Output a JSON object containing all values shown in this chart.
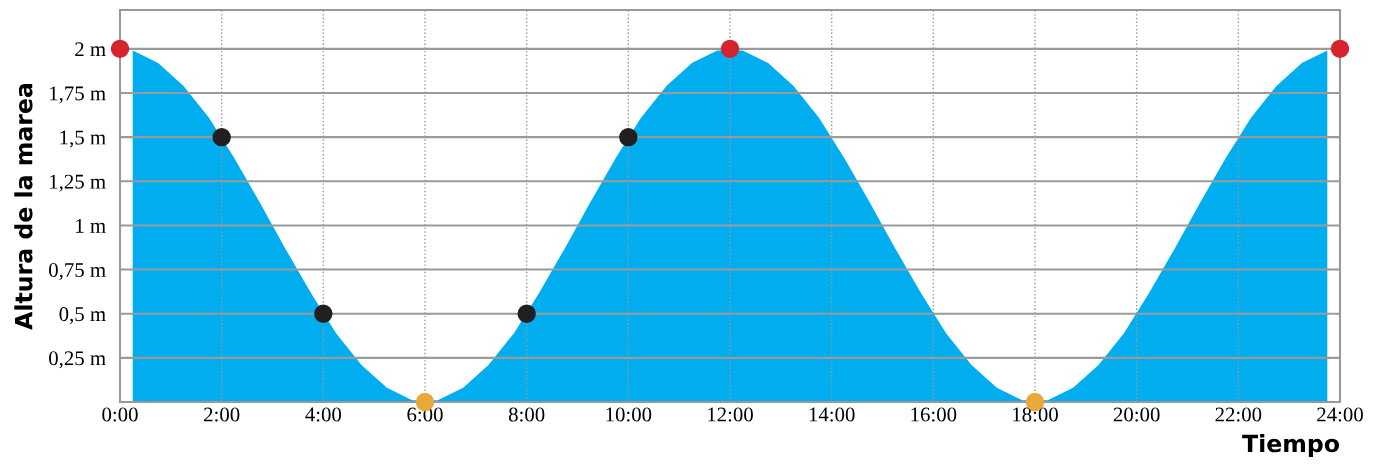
{
  "chart_data": {
    "type": "area",
    "xlabel": "Tiempo",
    "ylabel": "Altura de la marea",
    "grid": true,
    "legend": false,
    "xlim": [
      0,
      24
    ],
    "ylim": [
      0,
      2.22
    ],
    "xticks": [
      {
        "value": 0,
        "label": "0:00"
      },
      {
        "value": 2,
        "label": "2:00"
      },
      {
        "value": 4,
        "label": "4:00"
      },
      {
        "value": 6,
        "label": "6:00"
      },
      {
        "value": 8,
        "label": "8:00"
      },
      {
        "value": 10,
        "label": "10:00"
      },
      {
        "value": 12,
        "label": "12:00"
      },
      {
        "value": 14,
        "label": "14:00"
      },
      {
        "value": 16,
        "label": "16:00"
      },
      {
        "value": 18,
        "label": "18:00"
      },
      {
        "value": 20,
        "label": "20:00"
      },
      {
        "value": 22,
        "label": "22:00"
      },
      {
        "value": 24,
        "label": "24:00"
      }
    ],
    "yticks": [
      {
        "value": 0.25,
        "label": "0,25 m"
      },
      {
        "value": 0.5,
        "label": "0,5 m"
      },
      {
        "value": 0.75,
        "label": "0,75 m"
      },
      {
        "value": 1,
        "label": "1 m"
      },
      {
        "value": 1.25,
        "label": "1,25 m"
      },
      {
        "value": 1.5,
        "label": "1,5 m"
      },
      {
        "value": 1.75,
        "label": "1,75 m"
      },
      {
        "value": 2,
        "label": "2 m"
      }
    ],
    "series": [
      {
        "color": "#00aeef",
        "x": [
          0.25,
          0.75,
          1.25,
          1.75,
          2.25,
          2.75,
          3.25,
          3.75,
          4.25,
          4.75,
          5.25,
          5.75,
          6.25,
          6.75,
          7.25,
          7.75,
          8.25,
          8.75,
          9.25,
          9.75,
          10.25,
          10.75,
          11.25,
          11.75,
          12.25,
          12.75,
          13.25,
          13.75,
          14.25,
          14.75,
          15.25,
          15.75,
          16.25,
          16.75,
          17.25,
          17.75,
          18.25,
          18.75,
          19.25,
          19.75,
          20.25,
          20.75,
          21.25,
          21.75,
          22.25,
          22.75,
          23.25,
          23.75
        ],
        "values": [
          1.99,
          1.92,
          1.79,
          1.61,
          1.38,
          1.13,
          0.87,
          0.62,
          0.39,
          0.21,
          0.08,
          0.01,
          0.01,
          0.08,
          0.21,
          0.39,
          0.62,
          0.87,
          1.13,
          1.38,
          1.61,
          1.79,
          1.92,
          1.99,
          1.99,
          1.92,
          1.79,
          1.61,
          1.38,
          1.13,
          0.87,
          0.62,
          0.39,
          0.21,
          0.08,
          0.01,
          0.01,
          0.08,
          0.21,
          0.39,
          0.62,
          0.87,
          1.13,
          1.38,
          1.61,
          1.79,
          1.92,
          1.99
        ]
      },
      {
        "type": "scatter",
        "marker": "circle",
        "color": "#d7232e",
        "x": [
          0,
          12,
          24
        ],
        "values": [
          2,
          2,
          2
        ]
      },
      {
        "type": "scatter",
        "marker": "circle",
        "color": "#e8a93a",
        "x": [
          6,
          18
        ],
        "values": [
          0,
          0
        ]
      },
      {
        "type": "scatter",
        "marker": "circle",
        "color": "#231f20",
        "x": [
          2,
          4,
          8,
          10
        ],
        "values": [
          1.5,
          0.5,
          0.5,
          1.5
        ]
      }
    ]
  }
}
